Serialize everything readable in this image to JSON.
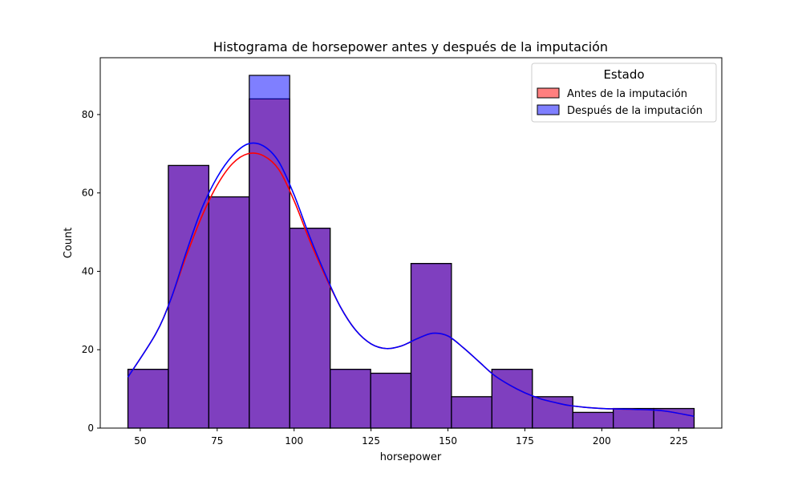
{
  "chart_data": {
    "type": "bar",
    "title": "Histograma de horsepower antes y después de la imputación",
    "xlabel": "horsepower",
    "ylabel": "Count",
    "xlim": [
      37,
      239
    ],
    "ylim": [
      0,
      94.5
    ],
    "x_ticks": [
      50,
      75,
      100,
      125,
      150,
      175,
      200,
      225
    ],
    "y_ticks": [
      0,
      20,
      40,
      60,
      80
    ],
    "bin_edges": [
      46,
      59.14,
      72.29,
      85.43,
      98.57,
      111.71,
      124.86,
      138,
      151.14,
      164.29,
      177.43,
      190.57,
      203.71,
      216.86,
      230
    ],
    "grid": false,
    "legend": {
      "title": "Estado",
      "position": "top-right",
      "entries": [
        "Antes de la imputación",
        "Después de la imputación"
      ]
    },
    "series": [
      {
        "name": "Antes de la imputación",
        "color": "#ff0000",
        "values": [
          15,
          67,
          59,
          84,
          51,
          15,
          14,
          42,
          8,
          15,
          8,
          4,
          5,
          5
        ],
        "kde": [
          [
            46,
            13
          ],
          [
            55,
            24
          ],
          [
            60,
            33
          ],
          [
            65,
            44
          ],
          [
            70,
            54
          ],
          [
            75,
            62
          ],
          [
            80,
            67.5
          ],
          [
            85,
            70
          ],
          [
            90,
            69.5
          ],
          [
            95,
            66
          ],
          [
            100,
            58
          ],
          [
            105,
            48
          ],
          [
            110,
            39
          ],
          [
            115,
            31
          ],
          [
            120,
            25
          ],
          [
            125,
            21.5
          ],
          [
            130,
            20.3
          ],
          [
            135,
            21
          ],
          [
            140,
            22.8
          ],
          [
            145,
            24.2
          ],
          [
            150,
            23.5
          ],
          [
            155,
            20.5
          ],
          [
            160,
            17
          ],
          [
            165,
            13.5
          ],
          [
            170,
            11
          ],
          [
            175,
            9
          ],
          [
            180,
            7.5
          ],
          [
            185,
            6.5
          ],
          [
            190,
            5.7
          ],
          [
            200,
            5
          ],
          [
            210,
            4.8
          ],
          [
            220,
            4.4
          ],
          [
            230,
            3
          ]
        ]
      },
      {
        "name": "Después de la imputación",
        "color": "#0000ff",
        "values": [
          15,
          67,
          59,
          90,
          51,
          15,
          14,
          42,
          8,
          15,
          8,
          4,
          5,
          5
        ],
        "kde": [
          [
            46,
            13
          ],
          [
            55,
            24
          ],
          [
            60,
            33
          ],
          [
            65,
            45
          ],
          [
            70,
            56
          ],
          [
            75,
            64
          ],
          [
            80,
            69.5
          ],
          [
            85,
            72.5
          ],
          [
            90,
            72
          ],
          [
            95,
            68
          ],
          [
            100,
            59.5
          ],
          [
            105,
            49
          ],
          [
            110,
            39.5
          ],
          [
            115,
            31
          ],
          [
            120,
            25
          ],
          [
            125,
            21.5
          ],
          [
            130,
            20.3
          ],
          [
            135,
            21
          ],
          [
            140,
            22.8
          ],
          [
            145,
            24.2
          ],
          [
            150,
            23.5
          ],
          [
            155,
            20.5
          ],
          [
            160,
            17
          ],
          [
            165,
            13.5
          ],
          [
            170,
            11
          ],
          [
            175,
            9
          ],
          [
            180,
            7.5
          ],
          [
            185,
            6.5
          ],
          [
            190,
            5.7
          ],
          [
            200,
            5
          ],
          [
            210,
            4.8
          ],
          [
            220,
            4.4
          ],
          [
            230,
            3
          ]
        ]
      }
    ]
  }
}
